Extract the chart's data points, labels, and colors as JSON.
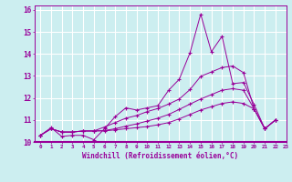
{
  "xlabel": "Windchill (Refroidissement éolien,°C)",
  "xlim": [
    -0.5,
    23
  ],
  "ylim": [
    10,
    16.2
  ],
  "background_color": "#cceef0",
  "grid_color": "#ffffff",
  "line_color": "#990099",
  "x_ticks": [
    0,
    1,
    2,
    3,
    4,
    5,
    6,
    7,
    8,
    9,
    10,
    11,
    12,
    13,
    14,
    15,
    16,
    17,
    18,
    19,
    20,
    21,
    22,
    23
  ],
  "y_ticks": [
    10,
    11,
    12,
    13,
    14,
    15,
    16
  ],
  "series1_x": [
    0,
    1,
    2,
    3,
    4,
    5,
    6,
    7,
    8,
    9,
    10,
    11,
    12,
    13,
    14,
    15,
    16,
    17,
    18,
    19,
    20,
    21,
    22
  ],
  "series1_y": [
    10.3,
    10.65,
    10.25,
    10.3,
    10.3,
    10.1,
    10.6,
    11.15,
    11.55,
    11.45,
    11.55,
    11.65,
    12.35,
    12.85,
    14.05,
    15.8,
    14.1,
    14.8,
    12.65,
    12.7,
    11.7,
    10.6,
    11.0
  ],
  "series2_x": [
    0,
    1,
    2,
    3,
    4,
    5,
    6,
    7,
    8,
    9,
    10,
    11,
    12,
    13,
    14,
    15,
    16,
    17,
    18,
    19,
    20,
    21,
    22
  ],
  "series2_y": [
    10.3,
    10.6,
    10.45,
    10.45,
    10.5,
    10.5,
    10.5,
    10.55,
    10.6,
    10.65,
    10.7,
    10.78,
    10.88,
    11.05,
    11.25,
    11.45,
    11.6,
    11.75,
    11.82,
    11.75,
    11.5,
    10.6,
    11.0
  ],
  "series3_x": [
    0,
    1,
    2,
    3,
    4,
    5,
    6,
    7,
    8,
    9,
    10,
    11,
    12,
    13,
    14,
    15,
    16,
    17,
    18,
    19,
    20,
    21,
    22
  ],
  "series3_y": [
    10.3,
    10.6,
    10.45,
    10.45,
    10.5,
    10.5,
    10.52,
    10.6,
    10.72,
    10.82,
    10.95,
    11.08,
    11.25,
    11.48,
    11.72,
    11.95,
    12.15,
    12.35,
    12.42,
    12.35,
    11.5,
    10.6,
    11.0
  ],
  "series4_x": [
    0,
    1,
    2,
    3,
    4,
    5,
    6,
    7,
    8,
    9,
    10,
    11,
    12,
    13,
    14,
    15,
    16,
    17,
    18,
    19,
    20,
    21,
    22
  ],
  "series4_y": [
    10.3,
    10.6,
    10.45,
    10.45,
    10.5,
    10.5,
    10.68,
    10.88,
    11.08,
    11.2,
    11.38,
    11.52,
    11.72,
    11.95,
    12.38,
    12.98,
    13.18,
    13.38,
    13.45,
    13.15,
    11.5,
    10.6,
    11.0
  ]
}
